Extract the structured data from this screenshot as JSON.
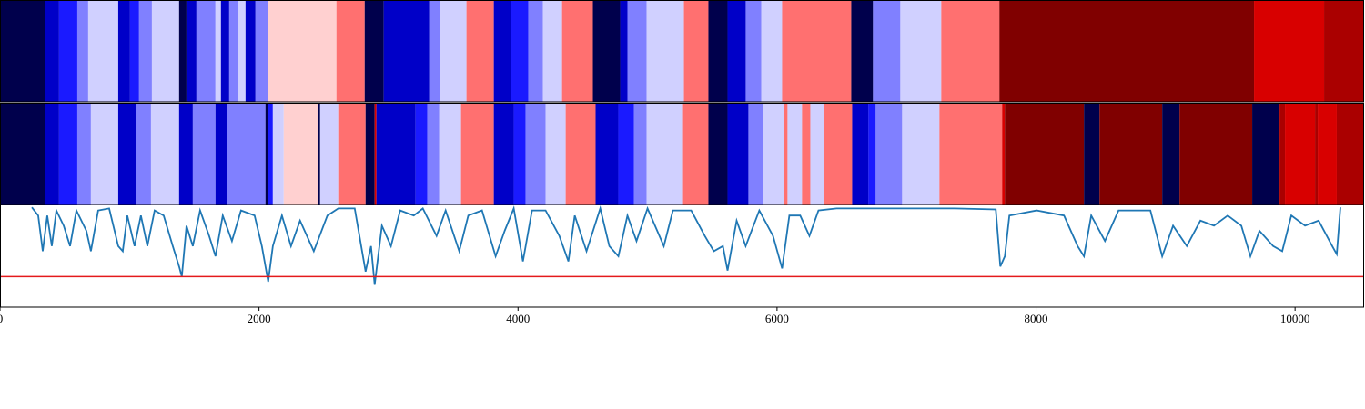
{
  "chart_data": [
    {
      "type": "segments",
      "xlim": [
        0,
        10533
      ],
      "boundaries": [
        0,
        351,
        456,
        597,
        681,
        913,
        1004,
        1074,
        1173,
        1383,
        1440,
        1517,
        1664,
        1706,
        1770,
        1840,
        1896,
        1973,
        2072,
        2598,
        2816,
        2963,
        3315,
        3399,
        3602,
        3813,
        3946,
        4080,
        4192,
        4340,
        4578,
        4789,
        4845,
        4993,
        5281,
        5470,
        5618,
        5758,
        5878,
        6039,
        6573,
        6741,
        6952,
        7268,
        7717,
        9683,
        10224,
        10533
      ],
      "colors": [
        "#00004c",
        "#0000c8",
        "#1a1aff",
        "#8080ff",
        "#d0d0ff",
        "#0000c8",
        "#1a1aff",
        "#8080ff",
        "#d0d0ff",
        "#00004c",
        "#0000c8",
        "#8080ff",
        "#d0d0ff",
        "#0000c8",
        "#8080ff",
        "#d0d0ff",
        "#0000c8",
        "#8080ff",
        "#ffd0d0",
        "#ff7070",
        "#00004c",
        "#0000c8",
        "#8080ff",
        "#d0d0ff",
        "#ff7070",
        "#0000c8",
        "#1a1aff",
        "#8080ff",
        "#d0d0ff",
        "#ff7070",
        "#00004c",
        "#0000c8",
        "#8080ff",
        "#d0d0ff",
        "#ff7070",
        "#00004c",
        "#0000c8",
        "#8080ff",
        "#d0d0ff",
        "#ff7070",
        "#00004c",
        "#8080ff",
        "#d0d0ff",
        "#ff7070",
        "#800000",
        "#d80000",
        "#aa0000"
      ]
    },
    {
      "type": "segments",
      "xlim": [
        0,
        10533
      ],
      "boundaries": [
        0,
        351,
        456,
        597,
        702,
        913,
        1053,
        1166,
        1383,
        1489,
        1664,
        1756,
        2050,
        2072,
        2107,
        2191,
        2458,
        2472,
        2612,
        2823,
        2893,
        2907,
        3209,
        3300,
        3392,
        3560,
        3813,
        3967,
        4059,
        4213,
        4368,
        4599,
        4775,
        4894,
        4993,
        5274,
        5470,
        5618,
        5779,
        5891,
        6053,
        6081,
        6193,
        6257,
        6362,
        6580,
        6706,
        6762,
        6966,
        7254,
        7738,
        7759,
        8370,
        8490,
        8974,
        9108,
        9669,
        9880,
        9922,
        10154,
        10175,
        10322,
        10533
      ],
      "colors": [
        "#00004c",
        "#0000c8",
        "#1a1aff",
        "#8080ff",
        "#d0d0ff",
        "#0000c8",
        "#8080ff",
        "#d0d0ff",
        "#0000c8",
        "#8080ff",
        "#0000c8",
        "#8080ff",
        "#00004c",
        "#1a1aff",
        "#d0d0ff",
        "#ffd0d0",
        "#00004c",
        "#d0d0ff",
        "#ff7070",
        "#00004c",
        "#d80000",
        "#0000c8",
        "#1a1aff",
        "#8080ff",
        "#d0d0ff",
        "#ff7070",
        "#0000c8",
        "#1a1aff",
        "#8080ff",
        "#d0d0ff",
        "#ff7070",
        "#0000c8",
        "#1a1aff",
        "#8080ff",
        "#d0d0ff",
        "#ff7070",
        "#00004c",
        "#0000c8",
        "#8080ff",
        "#d0d0ff",
        "#ff7070",
        "#d0d0ff",
        "#ff7070",
        "#d0d0ff",
        "#ff7070",
        "#0000c8",
        "#1a1aff",
        "#8080ff",
        "#d0d0ff",
        "#ff7070",
        "#d80000",
        "#800000",
        "#00004c",
        "#800000",
        "#00004c",
        "#800000",
        "#00004c",
        "#aa0000",
        "#d80000",
        "#aa0000",
        "#d80000",
        "#aa0000"
      ]
    },
    {
      "type": "line",
      "xlim": [
        0,
        10533
      ],
      "xticks": [
        0,
        2000,
        4000,
        6000,
        8000,
        10000
      ],
      "ylim": [
        0,
        1
      ],
      "reference_line": {
        "value": 0.3,
        "color": "#e41a1c"
      },
      "x": [
        246,
        295,
        330,
        365,
        400,
        435,
        492,
        541,
        590,
        667,
        702,
        758,
        843,
        913,
        948,
        983,
        1039,
        1088,
        1138,
        1194,
        1264,
        1334,
        1383,
        1404,
        1440,
        1489,
        1545,
        1615,
        1664,
        1720,
        1791,
        1861,
        1966,
        2022,
        2071,
        2107,
        2177,
        2247,
        2317,
        2423,
        2528,
        2612,
        2739,
        2823,
        2865,
        2893,
        2949,
        3019,
        3090,
        3195,
        3265,
        3371,
        3441,
        3546,
        3616,
        3722,
        3827,
        3897,
        3967,
        4038,
        4108,
        4213,
        4319,
        4389,
        4438,
        4529,
        4635,
        4705,
        4775,
        4845,
        4915,
        5000,
        5126,
        5196,
        5337,
        5442,
        5512,
        5582,
        5618,
        5688,
        5758,
        5863,
        5969,
        6039,
        6095,
        6179,
        6250,
        6320,
        6460,
        6671,
        7022,
        7373,
        7689,
        7724,
        7759,
        7794,
        8005,
        8216,
        8321,
        8370,
        8426,
        8532,
        8637,
        8883,
        8974,
        9058,
        9164,
        9269,
        9374,
        9480,
        9585,
        9655,
        9725,
        9831,
        9901,
        9971,
        10077,
        10182,
        10287,
        10322,
        10350
      ],
      "series": [
        {
          "color": "#1f77b4",
          "values": [
            0.98,
            0.9,
            0.55,
            0.9,
            0.6,
            0.95,
            0.8,
            0.6,
            0.95,
            0.75,
            0.55,
            0.95,
            0.97,
            0.6,
            0.55,
            0.9,
            0.6,
            0.9,
            0.6,
            0.95,
            0.9,
            0.6,
            0.4,
            0.3,
            0.8,
            0.6,
            0.95,
            0.7,
            0.5,
            0.9,
            0.65,
            0.95,
            0.9,
            0.6,
            0.25,
            0.6,
            0.9,
            0.6,
            0.85,
            0.55,
            0.9,
            0.97,
            0.97,
            0.35,
            0.6,
            0.22,
            0.8,
            0.6,
            0.95,
            0.9,
            0.97,
            0.7,
            0.95,
            0.55,
            0.9,
            0.95,
            0.5,
            0.75,
            0.97,
            0.45,
            0.95,
            0.95,
            0.7,
            0.45,
            0.9,
            0.55,
            0.97,
            0.6,
            0.5,
            0.9,
            0.65,
            0.97,
            0.6,
            0.95,
            0.95,
            0.7,
            0.55,
            0.6,
            0.36,
            0.85,
            0.6,
            0.95,
            0.7,
            0.38,
            0.9,
            0.9,
            0.7,
            0.95,
            0.97,
            0.97,
            0.97,
            0.97,
            0.96,
            0.4,
            0.5,
            0.9,
            0.95,
            0.9,
            0.6,
            0.5,
            0.9,
            0.65,
            0.95,
            0.95,
            0.5,
            0.8,
            0.6,
            0.85,
            0.8,
            0.9,
            0.8,
            0.5,
            0.75,
            0.6,
            0.55,
            0.9,
            0.8,
            0.85,
            0.6,
            0.52,
            0.98
          ]
        }
      ]
    }
  ]
}
